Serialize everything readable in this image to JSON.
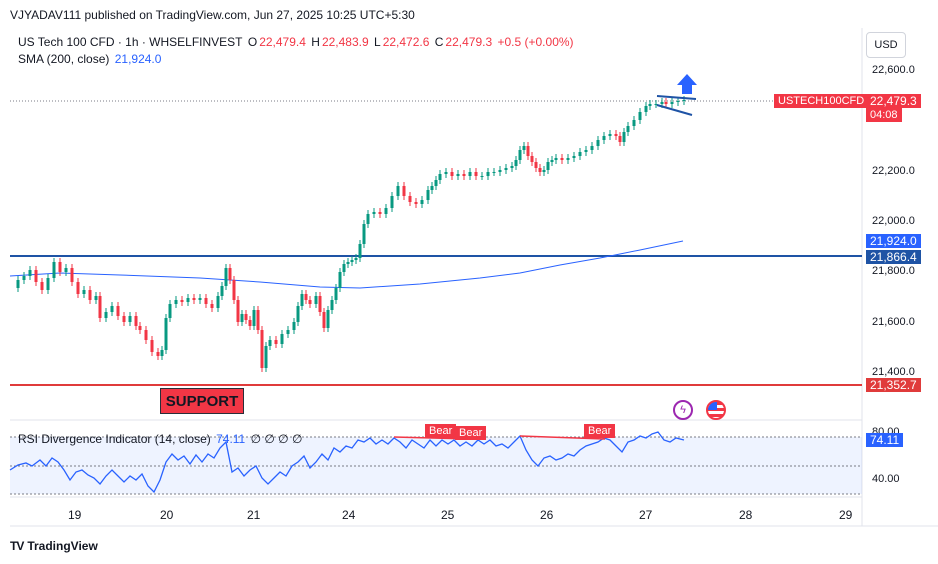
{
  "header": {
    "publisher": "VJYADAV111 published on TradingView.com, Jun 27, 2025 10:25 UTC+5:30",
    "symbol": "US Tech 100 CFD · 1h · WHSELFINVEST",
    "o_label": "O",
    "o_value": "22,479.4",
    "h_label": "H",
    "h_value": "22,483.9",
    "l_label": "L",
    "l_value": "22,472.6",
    "c_label": "C",
    "c_value": "22,479.3",
    "change": "+0.5 (+0.00%)",
    "sma_label": "SMA (200, close)",
    "sma_value": "21,924.0"
  },
  "currency_button": "USD",
  "price_axis": {
    "ticks": [
      "22,600.0",
      "22,200.0",
      "22,000.0",
      "21,800.0",
      "21,600.0",
      "21,400.0"
    ],
    "symbol_tag": "USTECH100CFD",
    "last_price": "22,479.3",
    "countdown": "04:08",
    "sma_tag": "21,924.0",
    "resistance_tag": "21,866.4",
    "support_tag": "21,352.7"
  },
  "time_axis": [
    "19",
    "20",
    "21",
    "24",
    "25",
    "26",
    "27",
    "28",
    "29"
  ],
  "support_label": "SUPPORT",
  "rsi": {
    "label": "RSI Divergence Indicator (14, close)",
    "value": "74.11",
    "extras": "∅ ∅ ∅ ∅",
    "ticks": [
      "80.00",
      "40.00"
    ],
    "value_tag": "74.11",
    "bear_labels": [
      "Bear",
      "Bear",
      "Bear"
    ]
  },
  "footer": {
    "brand": "TradingView"
  },
  "colors": {
    "bull": "#089981",
    "bear": "#f23645",
    "sma": "#2962ff",
    "level": "#1e53a5",
    "support": "#e03b3b"
  },
  "icons": [
    "up-arrow-icon",
    "lightning-icon",
    "us-flag-icon",
    "tradingview-logo-icon"
  ]
}
